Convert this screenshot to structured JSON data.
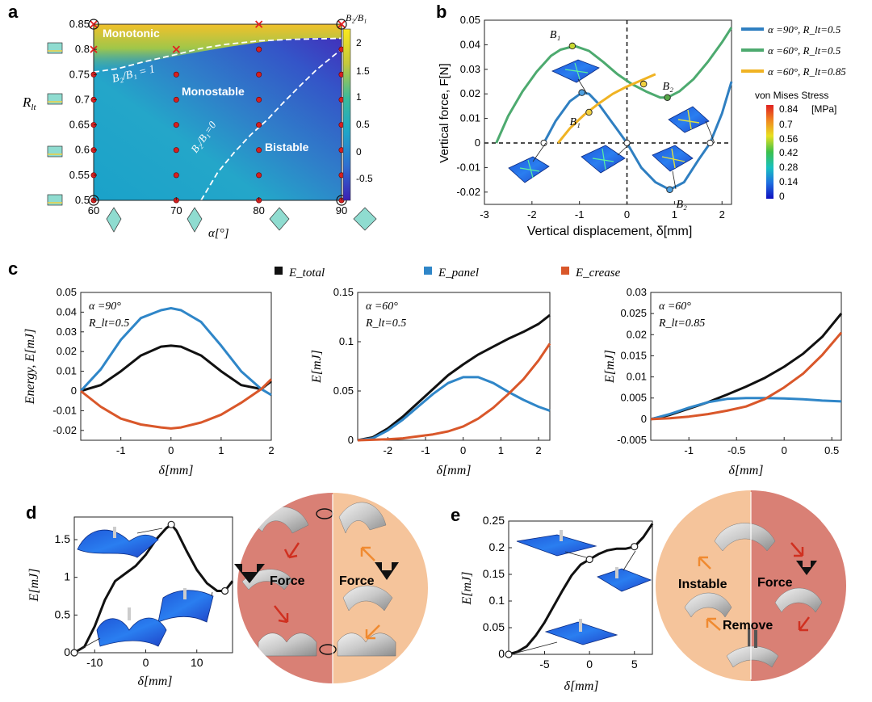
{
  "panels": {
    "a": "a",
    "b": "b",
    "c": "c",
    "d": "d",
    "e": "e"
  },
  "colors": {
    "blue": "#2f7fc1",
    "green": "#4daa6f",
    "orange": "#f0b323",
    "black": "#111111",
    "panel_blue": "#2f86c8",
    "crease": "#d9572a",
    "red": "#e32020",
    "disc_left": "#d98075",
    "disc_right": "#f5c49b"
  },
  "panel_a": {
    "xlabel": "α[°]",
    "ylabel": "R",
    "ylabel_sub": "lt",
    "colorbar_title": "B₂/B₁",
    "colorbar_ticks": [
      "2",
      "1.5",
      "1",
      "0.5",
      "0",
      "-0.5"
    ],
    "region_labels": [
      "Monotonic",
      "Monostable",
      "Bistable"
    ],
    "curve_labels": [
      "B₂/B₁ = 1",
      "B₂/B₁=0"
    ],
    "chart_data": {
      "type": "heatmap",
      "title": "",
      "xlabel": "α[°]",
      "ylabel": "R_lt",
      "xlim": [
        60,
        90
      ],
      "ylim": [
        0.5,
        0.85
      ],
      "x_ticks": [
        "60",
        "70",
        "80",
        "90"
      ],
      "y_ticks": [
        "0.85",
        "0.8",
        "0.75",
        "0.7",
        "0.65",
        "0.6",
        "0.55",
        "0.5"
      ],
      "colorbar_range": [
        -0.8,
        2.2
      ],
      "sample_points": [
        {
          "x": 60,
          "y": 0.85,
          "mark": "x"
        },
        {
          "x": 60,
          "y": 0.8,
          "mark": "x"
        },
        {
          "x": 60,
          "y": 0.75,
          "mark": "dot"
        },
        {
          "x": 60,
          "y": 0.7,
          "mark": "dot"
        },
        {
          "x": 60,
          "y": 0.65,
          "mark": "dot"
        },
        {
          "x": 60,
          "y": 0.6,
          "mark": "dot"
        },
        {
          "x": 60,
          "y": 0.55,
          "mark": "dot"
        },
        {
          "x": 60,
          "y": 0.5,
          "mark": "dot"
        },
        {
          "x": 70,
          "y": 0.8,
          "mark": "x"
        },
        {
          "x": 70,
          "y": 0.75,
          "mark": "dot"
        },
        {
          "x": 70,
          "y": 0.7,
          "mark": "dot"
        },
        {
          "x": 70,
          "y": 0.65,
          "mark": "dot"
        },
        {
          "x": 70,
          "y": 0.6,
          "mark": "dot"
        },
        {
          "x": 70,
          "y": 0.55,
          "mark": "dot"
        },
        {
          "x": 70,
          "y": 0.5,
          "mark": "dot"
        },
        {
          "x": 80,
          "y": 0.85,
          "mark": "x"
        },
        {
          "x": 80,
          "y": 0.8,
          "mark": "dot"
        },
        {
          "x": 80,
          "y": 0.75,
          "mark": "dot"
        },
        {
          "x": 80,
          "y": 0.7,
          "mark": "dot"
        },
        {
          "x": 80,
          "y": 0.65,
          "mark": "dot"
        },
        {
          "x": 80,
          "y": 0.6,
          "mark": "dot"
        },
        {
          "x": 80,
          "y": 0.55,
          "mark": "dot"
        },
        {
          "x": 80,
          "y": 0.5,
          "mark": "dot"
        },
        {
          "x": 90,
          "y": 0.85,
          "mark": "x"
        },
        {
          "x": 90,
          "y": 0.8,
          "mark": "dot"
        },
        {
          "x": 90,
          "y": 0.75,
          "mark": "dot"
        },
        {
          "x": 90,
          "y": 0.7,
          "mark": "dot"
        },
        {
          "x": 90,
          "y": 0.65,
          "mark": "dot"
        },
        {
          "x": 90,
          "y": 0.6,
          "mark": "dot"
        },
        {
          "x": 90,
          "y": 0.55,
          "mark": "dot"
        },
        {
          "x": 90,
          "y": 0.5,
          "mark": "dot"
        }
      ],
      "boundary_B2B1_1": {
        "x": [
          60,
          63,
          66,
          70,
          73,
          76,
          80,
          84,
          87,
          90
        ],
        "y": [
          0.755,
          0.762,
          0.775,
          0.79,
          0.802,
          0.81,
          0.817,
          0.82,
          0.821,
          0.822
        ]
      },
      "boundary_B2B1_0": {
        "x": [
          73,
          75,
          77,
          79,
          81,
          83,
          85,
          87,
          89,
          90
        ],
        "y": [
          0.5,
          0.555,
          0.595,
          0.63,
          0.66,
          0.695,
          0.728,
          0.76,
          0.787,
          0.8
        ]
      }
    }
  },
  "panel_b": {
    "xlabel": "Vertical displacement, δ[mm]",
    "ylabel": "Vertical force, F[N]",
    "legend": [
      "α =90°, R_lt=0.5",
      "α =60°, R_lt=0.5",
      "α =60°, R_lt=0.85"
    ],
    "colorbar_title": "von Mises Stress",
    "colorbar_unit": "[MPa]",
    "colorbar_ticks": [
      "0.84",
      "0.7",
      "0.56",
      "0.42",
      "0.28",
      "0.14",
      "0"
    ],
    "point_labels": [
      "B₁",
      "B₂",
      "B₁",
      "B₂"
    ],
    "chart_data": {
      "type": "line",
      "xlim": [
        -3,
        2.2
      ],
      "ylim": [
        -0.025,
        0.05
      ],
      "x_ticks": [
        "-3",
        "-2",
        "-1",
        "0",
        "1",
        "2"
      ],
      "y_ticks": [
        "0.05",
        "0.04",
        "0.03",
        "0.02",
        "0.01",
        "0",
        "-0.01",
        "-0.02"
      ],
      "series": [
        {
          "name": "α =90°, R_lt=0.5",
          "x": [
            -1.75,
            -1.5,
            -1.2,
            -0.95,
            -0.8,
            -0.6,
            -0.3,
            0,
            0.3,
            0.6,
            0.9,
            1.2,
            1.5,
            1.75,
            2.0,
            2.2
          ],
          "y": [
            0,
            0.009,
            0.017,
            0.0205,
            0.02,
            0.016,
            0.008,
            0,
            -0.01,
            -0.016,
            -0.019,
            -0.016,
            -0.007,
            0,
            0.012,
            0.025
          ]
        },
        {
          "name": "α =60°, R_lt=0.5",
          "x": [
            -2.75,
            -2.5,
            -2.2,
            -1.9,
            -1.6,
            -1.4,
            -1.1,
            -0.8,
            -0.5,
            -0.2,
            0.1,
            0.4,
            0.7,
            0.85,
            1.1,
            1.4,
            1.7,
            2.0,
            2.2
          ],
          "y": [
            0,
            0.011,
            0.021,
            0.029,
            0.0355,
            0.038,
            0.0395,
            0.0375,
            0.033,
            0.028,
            0.024,
            0.021,
            0.0185,
            0.0185,
            0.021,
            0.026,
            0.033,
            0.041,
            0.047
          ]
        },
        {
          "name": "α =60°, R_lt=0.85",
          "x": [
            -1.45,
            -1.2,
            -0.9,
            -0.6,
            -0.3,
            0,
            0.3,
            0.6
          ],
          "y": [
            0,
            0.006,
            0.0115,
            0.016,
            0.02,
            0.023,
            0.0255,
            0.028
          ]
        }
      ],
      "markers": [
        {
          "label": "B₁",
          "x": -1.15,
          "y": 0.0395
        },
        {
          "label": "B₂",
          "x": 0.85,
          "y": 0.0185
        },
        {
          "label": "B₁",
          "x": -0.8,
          "y": 0.0125
        },
        {
          "label": "B₂",
          "x": 0.9,
          "y": -0.019
        }
      ]
    }
  },
  "panel_c": {
    "legend": [
      "E_total",
      "E_panel",
      "E_crease"
    ],
    "plots": [
      {
        "annotation1": "α =90°",
        "annotation2": "R_lt=0.5",
        "ylabel": "Energy, E[mJ]",
        "xlabel": "δ[mm]",
        "chart_data": {
          "type": "line",
          "xlim": [
            -1.8,
            2
          ],
          "ylim": [
            -0.025,
            0.05
          ],
          "x_ticks": [
            "-1",
            "0",
            "1",
            "2"
          ],
          "y_ticks": [
            "0.05",
            "0.04",
            "0.03",
            "0.02",
            "0.01",
            "0",
            "-0.01",
            "-0.02"
          ],
          "series": [
            {
              "name": "E_total",
              "x": [
                -1.8,
                -1.4,
                -1,
                -0.6,
                -0.2,
                0,
                0.2,
                0.6,
                1,
                1.4,
                1.8,
                2
              ],
              "y": [
                0,
                0.003,
                0.01,
                0.018,
                0.0225,
                0.023,
                0.0225,
                0.018,
                0.01,
                0.003,
                0.001,
                0.005
              ]
            },
            {
              "name": "E_panel",
              "x": [
                -1.8,
                -1.4,
                -1,
                -0.6,
                -0.2,
                0,
                0.2,
                0.6,
                1,
                1.4,
                1.8,
                2
              ],
              "y": [
                0,
                0.011,
                0.026,
                0.037,
                0.041,
                0.042,
                0.041,
                0.035,
                0.023,
                0.01,
                0.001,
                -0.002
              ]
            },
            {
              "name": "E_crease",
              "x": [
                -1.8,
                -1.4,
                -1,
                -0.6,
                -0.2,
                0,
                0.2,
                0.6,
                1,
                1.4,
                1.8,
                2
              ],
              "y": [
                0,
                -0.008,
                -0.014,
                -0.017,
                -0.0185,
                -0.019,
                -0.0185,
                -0.016,
                -0.012,
                -0.006,
                0.001,
                0.006
              ]
            }
          ]
        }
      },
      {
        "annotation1": "α =60°",
        "annotation2": "R_lt=0.5",
        "ylabel": "E[mJ]",
        "xlabel": "δ[mm]",
        "chart_data": {
          "type": "line",
          "xlim": [
            -2.8,
            2.3
          ],
          "ylim": [
            0,
            0.15
          ],
          "x_ticks": [
            "-2",
            "-1",
            "0",
            "1",
            "2"
          ],
          "y_ticks": [
            "0.15",
            "0.1",
            "0.05",
            "0"
          ],
          "series": [
            {
              "name": "E_total",
              "x": [
                -2.8,
                -2.4,
                -2,
                -1.6,
                -1.2,
                -0.8,
                -0.4,
                0,
                0.4,
                0.8,
                1.2,
                1.6,
                2,
                2.3
              ],
              "y": [
                0,
                0.003,
                0.012,
                0.024,
                0.038,
                0.052,
                0.066,
                0.077,
                0.087,
                0.095,
                0.103,
                0.11,
                0.118,
                0.127
              ]
            },
            {
              "name": "E_panel",
              "x": [
                -2.8,
                -2.4,
                -2,
                -1.6,
                -1.2,
                -0.8,
                -0.4,
                0,
                0.4,
                0.8,
                1.2,
                1.6,
                2,
                2.3
              ],
              "y": [
                0,
                0.002,
                0.01,
                0.021,
                0.034,
                0.047,
                0.058,
                0.064,
                0.064,
                0.058,
                0.049,
                0.041,
                0.034,
                0.03
              ]
            },
            {
              "name": "E_crease",
              "x": [
                -2.8,
                -2.4,
                -2,
                -1.6,
                -1.2,
                -0.8,
                -0.4,
                0,
                0.4,
                0.8,
                1.2,
                1.6,
                2,
                2.3
              ],
              "y": [
                0,
                0.0005,
                0.001,
                0.002,
                0.004,
                0.006,
                0.009,
                0.014,
                0.022,
                0.033,
                0.047,
                0.062,
                0.081,
                0.098
              ]
            }
          ]
        }
      },
      {
        "annotation1": "α =60°",
        "annotation2": "R_lt=0.85",
        "ylabel": "E[mJ]",
        "xlabel": "δ[mm]",
        "chart_data": {
          "type": "line",
          "xlim": [
            -1.4,
            0.6
          ],
          "ylim": [
            -0.005,
            0.03
          ],
          "x_ticks": [
            "-1",
            "-0.5",
            "0",
            "0.5"
          ],
          "y_ticks": [
            "0.03",
            "0.025",
            "0.02",
            "0.015",
            "0.01",
            "0.005",
            "0",
            "-0.005"
          ],
          "series": [
            {
              "name": "E_total",
              "x": [
                -1.4,
                -1.2,
                -1,
                -0.8,
                -0.6,
                -0.4,
                -0.2,
                0,
                0.2,
                0.4,
                0.6
              ],
              "y": [
                0,
                0.001,
                0.0025,
                0.004,
                0.0058,
                0.0077,
                0.0098,
                0.0124,
                0.0155,
                0.0195,
                0.025
              ]
            },
            {
              "name": "E_panel",
              "x": [
                -1.4,
                -1.2,
                -1,
                -0.8,
                -0.6,
                -0.4,
                -0.2,
                0,
                0.2,
                0.4,
                0.6
              ],
              "y": [
                0,
                0.0012,
                0.0027,
                0.004,
                0.0048,
                0.005,
                0.005,
                0.0049,
                0.0047,
                0.0044,
                0.0042
              ]
            },
            {
              "name": "E_crease",
              "x": [
                -1.4,
                -1.2,
                -1,
                -0.8,
                -0.6,
                -0.4,
                -0.2,
                0,
                0.2,
                0.4,
                0.6
              ],
              "y": [
                0,
                0.0002,
                0.0006,
                0.0012,
                0.002,
                0.003,
                0.0048,
                0.0075,
                0.0108,
                0.0152,
                0.0205
              ]
            }
          ]
        }
      }
    ]
  },
  "panel_d": {
    "xlabel": "δ[mm]",
    "ylabel": "E[mJ]",
    "disc_labels": [
      "Force",
      "Force"
    ],
    "chart_data": {
      "type": "line",
      "xlim": [
        -14,
        17
      ],
      "ylim": [
        0,
        1.8
      ],
      "x_ticks": [
        "-10",
        "0",
        "10"
      ],
      "y_ticks": [
        "1.5",
        "1",
        "0.5",
        "0"
      ],
      "series": [
        {
          "name": "E",
          "x": [
            -14,
            -12,
            -10,
            -8,
            -6,
            -4,
            -2,
            0,
            2,
            4,
            5,
            6,
            8,
            10,
            12,
            14,
            15.5,
            17
          ],
          "y": [
            0,
            0.08,
            0.35,
            0.7,
            0.95,
            1.05,
            1.15,
            1.3,
            1.5,
            1.65,
            1.7,
            1.62,
            1.35,
            1.1,
            0.92,
            0.82,
            0.82,
            0.95
          ]
        }
      ],
      "markers": [
        {
          "x": -14,
          "y": 0
        },
        {
          "x": 5,
          "y": 1.7
        },
        {
          "x": 15.5,
          "y": 0.82
        }
      ]
    }
  },
  "panel_e": {
    "xlabel": "δ[mm]",
    "ylabel": "E[mJ]",
    "disc_labels": [
      "Instable",
      "Force",
      "Remove"
    ],
    "chart_data": {
      "type": "line",
      "xlim": [
        -9,
        7
      ],
      "ylim": [
        0,
        0.25
      ],
      "x_ticks": [
        "-5",
        "0",
        "5"
      ],
      "y_ticks": [
        "0.25",
        "0.2",
        "0.15",
        "0.1",
        "0.05",
        "0"
      ],
      "series": [
        {
          "name": "E",
          "x": [
            -9,
            -8,
            -7,
            -6,
            -5,
            -4,
            -3,
            -2,
            -1,
            0,
            1,
            2,
            3,
            4,
            5,
            6,
            7
          ],
          "y": [
            0,
            0.005,
            0.015,
            0.035,
            0.06,
            0.09,
            0.12,
            0.148,
            0.168,
            0.178,
            0.188,
            0.195,
            0.198,
            0.198,
            0.202,
            0.22,
            0.245
          ]
        }
      ],
      "markers": [
        {
          "x": -9,
          "y": 0
        },
        {
          "x": 0,
          "y": 0.178
        },
        {
          "x": 5,
          "y": 0.202
        }
      ]
    }
  }
}
